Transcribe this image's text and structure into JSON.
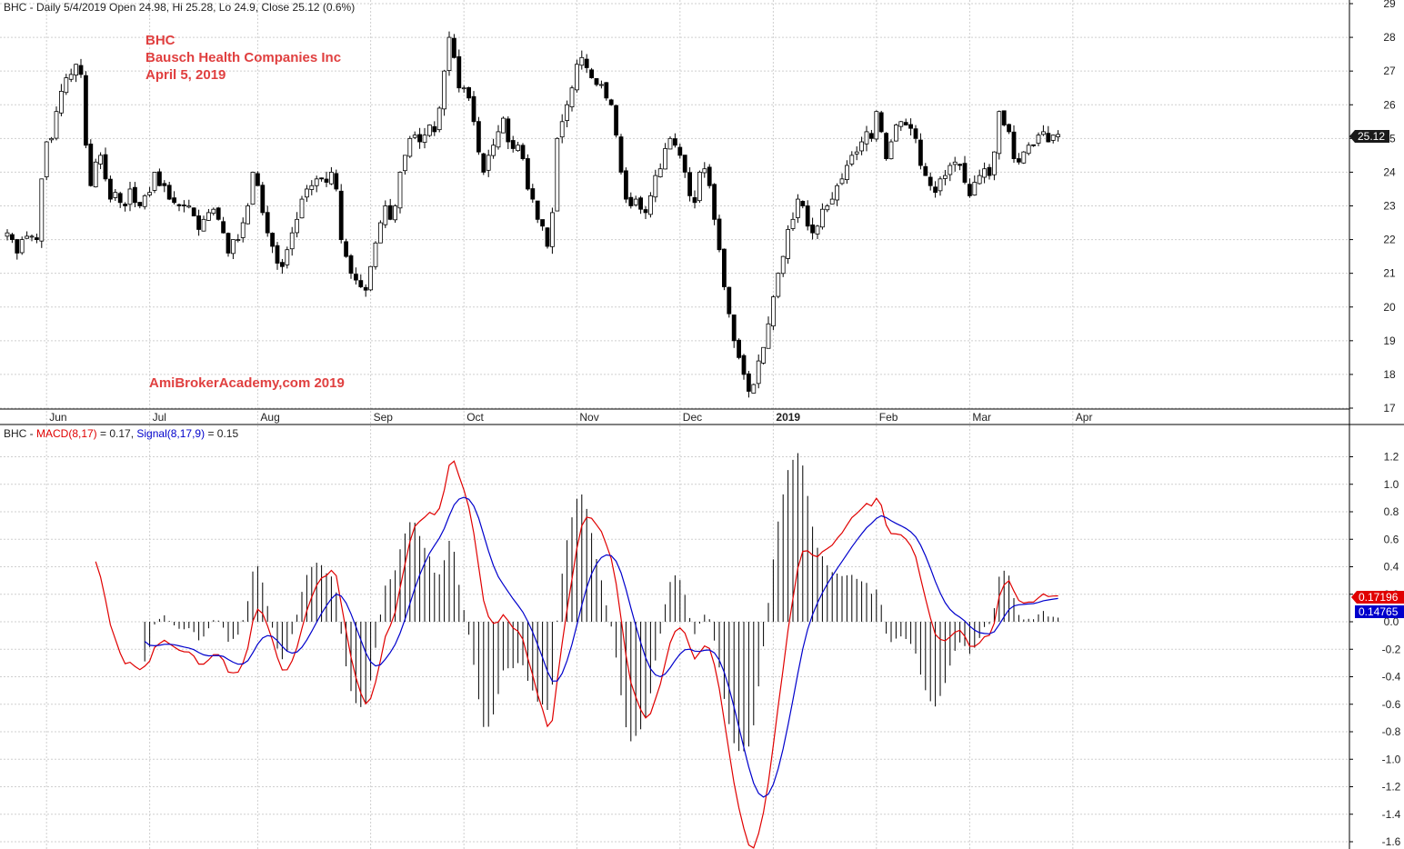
{
  "price_header": "BHC - Daily 5/4/2019 Open 24.98, Hi 25.28, Lo 24.9, Close 25.12 (0.6%)",
  "macd_header": {
    "prefix": "BHC - ",
    "macd": "MACD(8,17)",
    "macd_val": " = 0.17, ",
    "signal": "Signal(8,17,9)",
    "signal_val": " = 0.15"
  },
  "annotations": {
    "ticker": "BHC",
    "company": "Bausch Health Companies Inc",
    "date": "April 5, 2019",
    "watermark": "AmiBrokerAcademy,com  2019"
  },
  "value_tags": {
    "close": "25.12",
    "macd": "0.17196",
    "signal": "0.14765"
  },
  "colors": {
    "up": "#ffffff",
    "down": "#000000",
    "macd": "#e00000",
    "signal": "#0000cc",
    "annotation": "#e04040",
    "grid": "#c8c8c8"
  },
  "chart_data": [
    {
      "type": "candlestick",
      "title": "BHC - Daily",
      "x_months": [
        {
          "label": "Jun",
          "day": 8
        },
        {
          "label": "Jul",
          "day": 29
        },
        {
          "label": "Aug",
          "day": 51
        },
        {
          "label": "Sep",
          "day": 74
        },
        {
          "label": "Oct",
          "day": 93
        },
        {
          "label": "Nov",
          "day": 116
        },
        {
          "label": "Dec",
          "day": 137
        },
        {
          "label": "2019",
          "day": 156
        },
        {
          "label": "Feb",
          "day": 177
        },
        {
          "label": "Mar",
          "day": 196
        },
        {
          "label": "Apr",
          "day": 217
        }
      ],
      "y_ticks": [
        17,
        18,
        19,
        20,
        21,
        22,
        23,
        24,
        25,
        26,
        27,
        28,
        29
      ],
      "ylim": [
        17,
        29
      ],
      "grid": true,
      "closes": [
        22.2,
        22.0,
        21.6,
        22.0,
        22.1,
        22.1,
        22.0,
        23.8,
        24.9,
        25.0,
        25.8,
        26.4,
        26.8,
        26.9,
        27.2,
        26.9,
        24.8,
        23.6,
        24.3,
        24.5,
        23.8,
        23.2,
        23.4,
        23.1,
        23.0,
        23.5,
        23.1,
        23.0,
        23.3,
        23.4,
        24.0,
        23.6,
        23.6,
        23.2,
        23.1,
        23.0,
        23.0,
        23.0,
        22.7,
        22.3,
        22.6,
        22.8,
        22.9,
        22.6,
        22.2,
        21.6,
        22.0,
        22.0,
        22.5,
        23.0,
        24.0,
        23.6,
        22.8,
        22.2,
        21.8,
        21.3,
        21.2,
        21.7,
        22.2,
        22.6,
        23.2,
        23.5,
        23.6,
        23.8,
        23.8,
        23.7,
        24.0,
        23.5,
        22.0,
        21.5,
        21.0,
        20.8,
        20.6,
        20.5,
        21.2,
        21.9,
        22.5,
        23.0,
        22.6,
        23.0,
        24.0,
        24.5,
        25.0,
        25.1,
        24.9,
        25.1,
        25.4,
        25.2,
        25.9,
        27.0,
        28.0,
        27.4,
        26.5,
        26.5,
        26.2,
        25.5,
        24.6,
        24.0,
        24.5,
        24.8,
        25.2,
        25.6,
        24.9,
        24.7,
        24.8,
        24.4,
        23.5,
        23.2,
        22.6,
        22.4,
        21.8,
        22.8,
        25.0,
        25.5,
        26.0,
        26.5,
        27.2,
        27.4,
        27.1,
        26.8,
        26.6,
        26.6,
        26.2,
        26.0,
        25.1,
        24.0,
        23.2,
        23.0,
        23.2,
        22.9,
        22.8,
        23.3,
        23.9,
        24.1,
        24.7,
        25.0,
        24.8,
        24.5,
        24.0,
        23.3,
        23.1,
        24.0,
        24.1,
        23.6,
        22.6,
        21.7,
        20.6,
        19.8,
        19.0,
        18.5,
        18.0,
        17.5,
        17.7,
        18.4,
        18.8,
        19.5,
        20.3,
        21.0,
        21.5,
        22.3,
        22.6,
        23.2,
        23.0,
        22.4,
        22.2,
        22.4,
        22.9,
        23.0,
        23.2,
        23.6,
        23.8,
        24.2,
        24.5,
        24.6,
        24.9,
        25.2,
        25.0,
        25.8,
        25.2,
        24.4,
        24.9,
        25.4,
        25.5,
        25.4,
        25.3,
        25.0,
        24.2,
        23.9,
        23.6,
        23.4,
        23.8,
        23.9,
        24.2,
        24.3,
        24.2,
        23.7,
        23.3,
        23.7,
        23.9,
        24.1,
        23.9,
        24.6,
        25.8,
        25.4,
        25.2,
        24.4,
        24.3,
        24.6,
        24.8,
        24.8,
        25.1,
        25.2,
        24.9,
        25.1,
        25.12
      ],
      "volatility": 0.22,
      "series": [
        {
          "name": "BHC",
          "last": 25.12,
          "open": 24.98,
          "high": 25.28,
          "low": 24.9
        }
      ]
    },
    {
      "type": "line",
      "title": "BHC - MACD(8,17), Signal(8,17,9)",
      "y_ticks": [
        -1.6,
        -1.4,
        -1.2,
        -1.0,
        -0.8,
        -0.6,
        -0.4,
        -0.2,
        0.0,
        0.2,
        0.4,
        0.6,
        0.8,
        1.0,
        1.2
      ],
      "ylim": [
        -1.6,
        1.3
      ],
      "grid": true,
      "series": [
        {
          "name": "MACD(8,17)",
          "last": 0.17
        },
        {
          "name": "Signal(8,17,9)",
          "last": 0.15
        },
        {
          "name": "Histogram",
          "type": "bar"
        }
      ]
    }
  ]
}
